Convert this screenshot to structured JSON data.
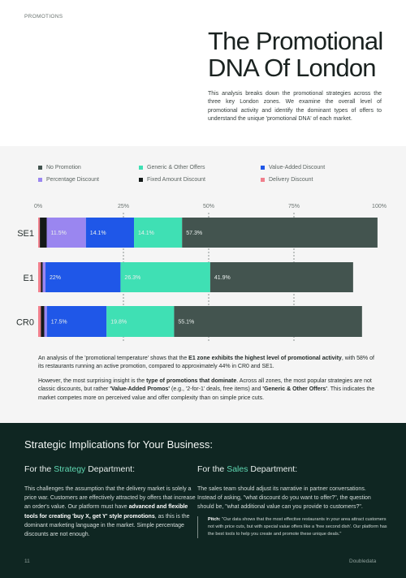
{
  "section_label": "PROMOTIONS",
  "title": "The Promotional DNA Of London",
  "intro": "This analysis breaks down the promotional strategies across the three key London zones. We examine the overall level of promotional activity and identify the dominant types of offers to understand the unique 'promotional DNA' of each market.",
  "colors": {
    "no_promotion": "#43544f",
    "generic_other": "#3fe0b4",
    "value_added": "#1f57e8",
    "percentage": "#9a86f0",
    "fixed_amount": "#141a19",
    "delivery": "#f07f8c",
    "dark_bg": "#0f2622",
    "accent": "#5fd8b2"
  },
  "chart_data": {
    "type": "bar",
    "orientation": "horizontal",
    "stacked": true,
    "x_ticks": [
      "0%",
      "25%",
      "50%",
      "75%",
      "100%"
    ],
    "xlim": [
      0,
      100
    ],
    "grid": "dashed vertical",
    "legend_position": "top",
    "categories": [
      "SE1",
      "E1",
      "CR0"
    ],
    "series": [
      {
        "name": "Delivery Discount",
        "color_key": "delivery",
        "values": [
          0.5,
          0.8,
          0.8
        ]
      },
      {
        "name": "Fixed Amount Discount",
        "color_key": "fixed_amount",
        "values": [
          2.0,
          0.5,
          1.0
        ]
      },
      {
        "name": "Percentage Discount",
        "color_key": "percentage",
        "values": [
          11.5,
          0.85,
          0.76
        ]
      },
      {
        "name": "Value-Added Discount",
        "color_key": "value_added",
        "values": [
          14.1,
          22.0,
          17.5
        ]
      },
      {
        "name": "Generic & Other Offers",
        "color_key": "generic_other",
        "values": [
          14.1,
          26.3,
          19.8
        ]
      },
      {
        "name": "No Promotion",
        "color_key": "no_promotion",
        "values": [
          57.3,
          41.9,
          55.1
        ]
      }
    ],
    "data_labels": [
      [
        "",
        "",
        "11.5%",
        "14.1%",
        "14.1%",
        "57.3%"
      ],
      [
        "",
        "",
        "0.85%",
        "22%",
        "26.3%",
        "41.9%"
      ],
      [
        "",
        "",
        "0.76%",
        "17.5%",
        "19.8%",
        "55.1%"
      ]
    ],
    "legend": [
      {
        "label": "No Promotion",
        "color_key": "no_promotion"
      },
      {
        "label": "Generic & Other Offers",
        "color_key": "generic_other"
      },
      {
        "label": "Value-Added Discount",
        "color_key": "value_added"
      },
      {
        "label": "Percentage Discount",
        "color_key": "percentage"
      },
      {
        "label": "Fixed Amount Discount",
        "color_key": "fixed_amount"
      },
      {
        "label": "Delivery Discount",
        "color_key": "delivery"
      }
    ]
  },
  "analysis": {
    "p1_a": "An analysis of the 'promotional temperature' shows that the ",
    "p1_b": "E1 zone exhibits the highest level of promotional activity",
    "p1_c": ", with 58% of its restaurants running an active promotion, compared to approximately 44% in CR0 and SE1.",
    "p2_a": "However, the most surprising insight is the ",
    "p2_b": "type of promotions that dominate",
    "p2_c": ". Across all zones, the most popular strategies are not classic discounts, but rather ",
    "p2_d": "'Value-Added Promos'",
    "p2_e": " (e.g., '2-for-1' deals, free items) and ",
    "p2_f": "'Generic & Other Offers'",
    "p2_g": ". This indicates the market competes more on perceived value and offer complexity than on simple price cuts."
  },
  "strategic": {
    "title": "Strategic Implications for Your Business:",
    "strategy_heading_pre": "For the ",
    "strategy_heading_accent": "Strategy",
    "strategy_heading_post": " Department:",
    "strategy_body_a": "This challenges the assumption that the delivery market is solely a price war. Customers are effectively attracted by offers that increase an order's value. Our platform must have ",
    "strategy_body_b": "advanced and flexible tools for creating 'buy X, get Y' style promotions",
    "strategy_body_c": ", as this is the dominant marketing language in the market. Simple percentage discounts are not enough.",
    "sales_heading_pre": "For the ",
    "sales_heading_accent": "Sales",
    "sales_heading_post": " Department:",
    "sales_body": "The sales team should adjust its narrative in partner conversations. Instead of asking, \"what discount do you want to offer?\", the question should be, \"what additional value can you provide to customers?\".",
    "pitch_label": "Pitch:",
    "pitch_text": " \"Our data shows that the most effective restaurants in your area attract customers not with price cuts, but with special value offers like a 'free second dish'. Our platform has the best tools to help you create and promote these unique deals.\""
  },
  "footer": {
    "page_number": "11",
    "brand": "Doubledata"
  }
}
